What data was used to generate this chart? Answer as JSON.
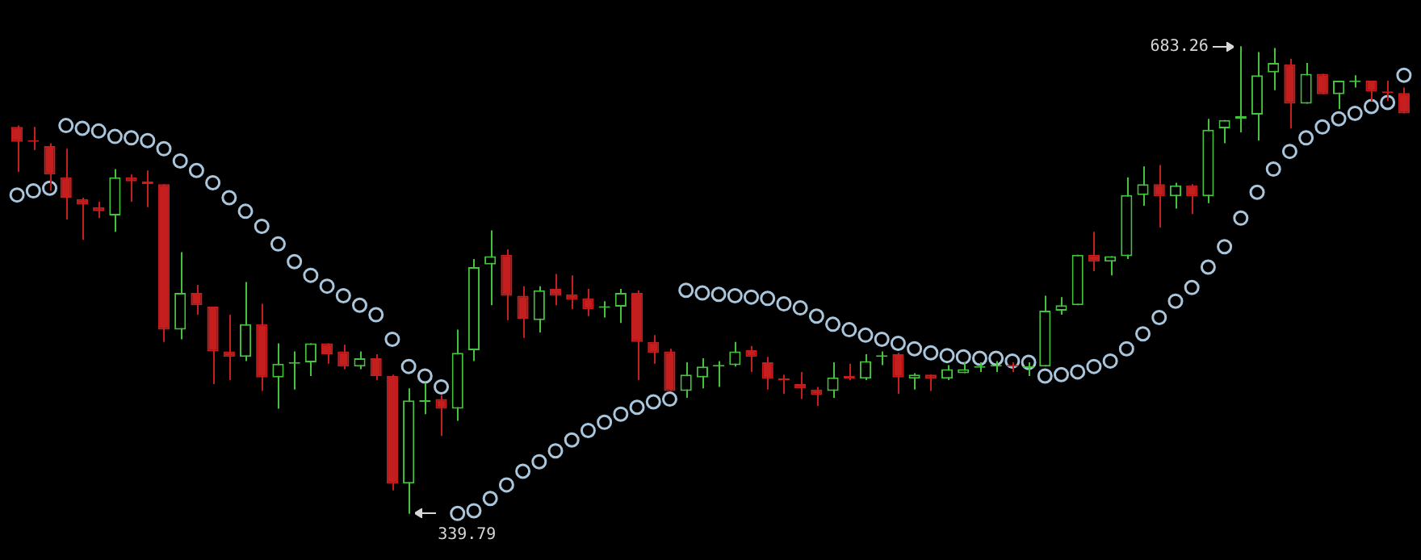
{
  "chart_data": {
    "type": "candlestick",
    "tick_labels": false,
    "marker": "circle",
    "categories": [
      null,
      null,
      null,
      null,
      null,
      null,
      null,
      null,
      null,
      null,
      null,
      null,
      null,
      null,
      null,
      null,
      null,
      null,
      null,
      null,
      null,
      null,
      null,
      null,
      null,
      null,
      null,
      null,
      null,
      null,
      null,
      null,
      null,
      null,
      null,
      null,
      null,
      null,
      null,
      null,
      null,
      null,
      null,
      null,
      null,
      null,
      null,
      null,
      null,
      null,
      null,
      null,
      null,
      null,
      null,
      null,
      null,
      null,
      null,
      null,
      null,
      null,
      null,
      null,
      null,
      null,
      null,
      null,
      null,
      null,
      null,
      null,
      null,
      null,
      null,
      null,
      null,
      null,
      null,
      null,
      null,
      null,
      null,
      null,
      null,
      null
    ],
    "ohlc": [
      [
        624,
        625,
        591,
        613
      ],
      [
        614,
        624,
        607,
        613
      ],
      [
        610,
        612,
        577,
        589
      ],
      [
        587,
        608,
        556,
        572
      ],
      [
        571,
        572,
        541,
        567
      ],
      [
        565,
        569,
        557,
        562
      ],
      [
        559,
        593,
        547,
        587
      ],
      [
        587,
        589,
        569,
        584
      ],
      [
        584,
        592,
        565,
        582
      ],
      [
        582,
        582,
        466,
        475
      ],
      [
        475,
        532,
        468,
        502
      ],
      [
        502,
        508,
        486,
        493
      ],
      [
        492,
        492,
        435,
        459
      ],
      [
        459,
        486,
        438,
        455
      ],
      [
        455,
        510,
        452,
        479
      ],
      [
        479,
        494,
        430,
        440
      ],
      [
        440,
        465,
        417,
        450
      ],
      [
        450,
        459,
        431,
        451
      ],
      [
        451,
        465,
        441,
        465
      ],
      [
        465,
        465,
        450,
        457
      ],
      [
        459,
        464,
        446,
        448
      ],
      [
        448,
        459,
        446,
        454
      ],
      [
        454,
        457,
        438,
        441
      ],
      [
        441,
        442,
        357,
        362
      ],
      [
        362,
        432,
        339.79,
        423
      ],
      [
        422,
        436,
        413,
        423
      ],
      [
        424,
        427,
        397,
        417
      ],
      [
        417,
        475,
        408,
        458
      ],
      [
        460,
        527,
        452,
        521
      ],
      [
        523,
        548,
        493,
        529
      ],
      [
        530,
        534,
        482,
        500
      ],
      [
        500,
        507,
        469,
        483
      ],
      [
        482,
        507,
        473,
        504
      ],
      [
        505,
        516,
        493,
        500
      ],
      [
        501,
        515,
        490,
        497
      ],
      [
        498,
        505,
        485,
        490
      ],
      [
        491,
        496,
        484,
        491
      ],
      [
        492,
        505,
        480,
        502
      ],
      [
        502,
        504,
        438,
        466
      ],
      [
        466,
        471,
        450,
        458
      ],
      [
        459,
        461,
        430,
        430
      ],
      [
        430,
        451,
        425,
        442
      ],
      [
        440,
        454,
        432,
        448
      ],
      [
        448,
        452,
        433,
        448
      ],
      [
        449,
        466,
        448,
        459
      ],
      [
        460,
        463,
        444,
        455
      ],
      [
        451,
        455,
        431,
        439
      ],
      [
        438,
        442,
        428,
        438
      ],
      [
        435,
        444,
        424,
        432
      ],
      [
        431,
        433,
        419,
        427
      ],
      [
        430,
        451,
        425,
        440
      ],
      [
        441,
        450,
        438,
        439
      ],
      [
        439,
        457,
        438,
        452
      ],
      [
        455,
        459,
        449,
        455
      ],
      [
        457,
        458,
        428,
        440
      ],
      [
        439,
        443,
        431,
        442
      ],
      [
        442,
        442,
        430,
        439
      ],
      [
        439,
        449,
        438,
        446
      ],
      [
        443,
        451,
        443,
        446
      ],
      [
        447,
        451,
        444,
        448
      ],
      [
        448,
        452,
        444,
        449
      ],
      [
        449,
        451,
        444,
        448
      ],
      [
        447,
        451,
        441,
        448
      ],
      [
        448,
        500,
        448,
        489
      ],
      [
        489,
        499,
        486,
        493
      ],
      [
        493,
        530,
        493,
        530
      ],
      [
        530,
        547,
        518,
        525
      ],
      [
        525,
        529,
        515,
        529
      ],
      [
        529,
        587,
        527,
        574
      ],
      [
        574,
        595,
        566,
        582
      ],
      [
        582,
        596,
        550,
        573
      ],
      [
        573,
        583,
        564,
        581
      ],
      [
        581,
        582,
        560,
        573
      ],
      [
        573,
        630,
        568,
        622
      ],
      [
        623,
        629,
        612,
        629
      ],
      [
        630,
        683.26,
        620,
        632
      ],
      [
        633,
        679,
        614,
        662
      ],
      [
        664,
        682,
        651,
        671
      ],
      [
        670,
        674,
        623,
        641
      ],
      [
        641,
        671,
        641,
        663
      ],
      [
        663,
        663,
        648,
        648
      ],
      [
        648,
        658,
        637,
        658
      ],
      [
        657,
        662,
        653,
        658
      ],
      [
        658,
        658,
        643,
        650
      ],
      [
        649,
        658,
        643,
        649
      ],
      [
        649,
        653,
        634,
        634
      ]
    ],
    "colors": [
      "#c41e1e",
      "#c41e1e",
      "#c41e1e",
      "#c41e1e",
      "#c41e1e",
      "#c41e1e",
      "#44c43c",
      "#c41e1e",
      "#c41e1e",
      "#c41e1e",
      "#44c43c",
      "#c41e1e",
      "#c41e1e",
      "#c41e1e",
      "#44c43c",
      "#c41e1e",
      "#44c43c",
      "#44c43c",
      "#44c43c",
      "#c41e1e",
      "#c41e1e",
      "#44c43c",
      "#c41e1e",
      "#c41e1e",
      "#44c43c",
      "#44c43c",
      "#c41e1e",
      "#44c43c",
      "#44c43c",
      "#44c43c",
      "#c41e1e",
      "#c41e1e",
      "#44c43c",
      "#c41e1e",
      "#c41e1e",
      "#c41e1e",
      "#44c43c",
      "#44c43c",
      "#c41e1e",
      "#c41e1e",
      "#c41e1e",
      "#44c43c",
      "#44c43c",
      "#44c43c",
      "#44c43c",
      "#c41e1e",
      "#c41e1e",
      "#c41e1e",
      "#c41e1e",
      "#c41e1e",
      "#44c43c",
      "#c41e1e",
      "#44c43c",
      "#44c43c",
      "#c41e1e",
      "#44c43c",
      "#c41e1e",
      "#44c43c",
      "#44c43c",
      "#44c43c",
      "#44c43c",
      "#c41e1e",
      "#44c43c",
      "#44c43c",
      "#44c43c",
      "#44c43c",
      "#c41e1e",
      "#44c43c",
      "#44c43c",
      "#44c43c",
      "#c41e1e",
      "#44c43c",
      "#c41e1e",
      "#44c43c",
      "#44c43c",
      "#44c43c",
      "#44c43c",
      "#44c43c",
      "#c41e1e",
      "#44c43c",
      "#c41e1e",
      "#44c43c",
      "#44c43c",
      "#c41e1e",
      "#c41e1e",
      "#c41e1e"
    ],
    "series": [
      {
        "type": "scatter",
        "color": "#a9c6dc",
        "values": [
          574,
          577,
          579,
          625,
          623,
          621,
          617,
          616,
          614,
          608,
          599,
          592,
          583,
          572,
          562,
          551,
          538,
          525,
          515,
          507,
          500,
          493,
          486,
          468,
          448,
          441,
          433,
          340,
          342,
          351,
          361,
          371,
          378,
          386,
          394,
          401,
          407,
          413,
          418,
          422,
          424,
          504,
          502,
          501,
          500,
          499,
          498,
          494,
          491,
          485,
          479,
          475,
          471,
          468,
          465,
          461,
          458,
          456,
          455,
          454,
          454,
          452,
          451,
          441,
          442,
          444,
          448,
          452,
          461,
          472,
          484,
          496,
          506,
          521,
          536,
          557,
          576,
          593,
          606,
          616,
          624,
          630,
          634,
          639,
          642,
          662
        ]
      }
    ],
    "annotations": [
      "683.26",
      "339.79"
    ]
  }
}
